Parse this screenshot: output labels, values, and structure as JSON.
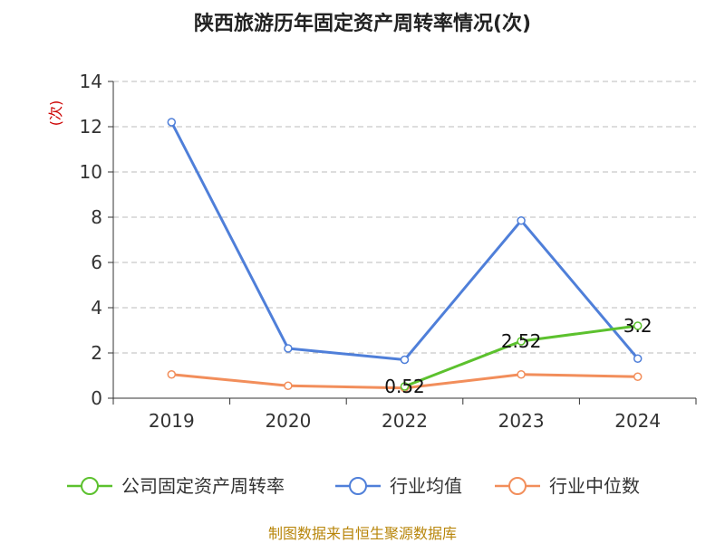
{
  "chart_data": {
    "type": "line",
    "title": "陕西旅游历年固定资产周转率情况(次)",
    "ylabel": "(次)",
    "categories": [
      "2019",
      "2020",
      "2022",
      "2023",
      "2024"
    ],
    "ylim": [
      0,
      14
    ],
    "yticks": [
      0,
      2,
      4,
      6,
      8,
      10,
      12,
      14
    ],
    "grid": true,
    "legend_position": "bottom",
    "series": [
      {
        "name": "公司固定资产周转率",
        "color": "#5cc12e",
        "values": [
          null,
          null,
          0.52,
          2.52,
          3.2
        ],
        "labels": [
          null,
          null,
          "0.52",
          "2.52",
          "3.2"
        ]
      },
      {
        "name": "行业均值",
        "color": "#4f7fd9",
        "values": [
          12.2,
          2.2,
          1.7,
          7.85,
          1.75
        ],
        "labels": [
          null,
          null,
          null,
          null,
          null
        ]
      },
      {
        "name": "行业中位数",
        "color": "#f28e5b",
        "values": [
          1.05,
          0.55,
          0.45,
          1.05,
          0.95
        ],
        "labels": [
          null,
          null,
          null,
          null,
          null
        ]
      }
    ],
    "source": "制图数据来自恒生聚源数据库"
  }
}
